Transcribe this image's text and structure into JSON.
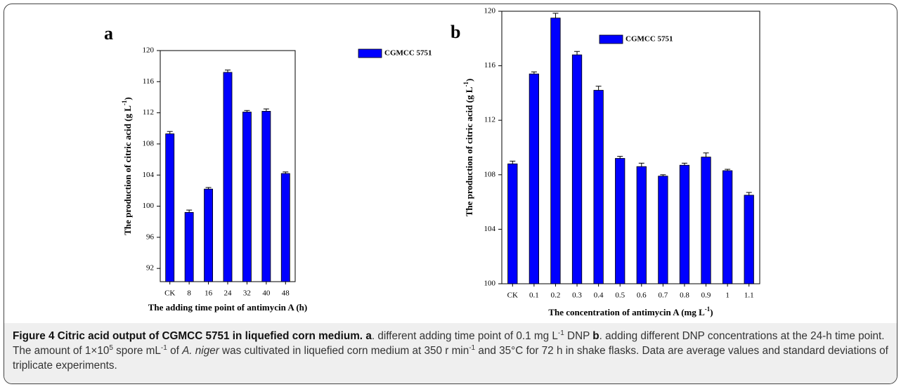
{
  "chart_data": [
    {
      "type": "bar",
      "panel": "a",
      "categories": [
        "CK",
        "8",
        "16",
        "24",
        "32",
        "40",
        "48"
      ],
      "series": [
        {
          "name": "CGMCC 5751",
          "color": "#0000ff",
          "values": [
            109.3,
            99.2,
            102.2,
            117.2,
            112.1,
            112.2,
            104.2
          ],
          "errors": [
            0.3,
            0.3,
            0.2,
            0.3,
            0.2,
            0.3,
            0.2
          ]
        }
      ],
      "ylim": [
        90.3,
        120
      ],
      "yticks": [
        92,
        96,
        100,
        104,
        108,
        112,
        116,
        120
      ],
      "x_label": "The adding time point of antimycin A (h)",
      "y_label": [
        "The production of citric acid (g L",
        "-1",
        ")"
      ],
      "legend": "upper right"
    },
    {
      "type": "bar",
      "panel": "b",
      "categories": [
        "CK",
        "0.1",
        "0.2",
        "0.3",
        "0.4",
        "0.5",
        "0.6",
        "0.7",
        "0.8",
        "0.9",
        "1",
        "1.1"
      ],
      "series": [
        {
          "name": "CGMCC 5751",
          "color": "#0000ff",
          "values": [
            108.8,
            115.4,
            119.5,
            116.8,
            114.2,
            109.2,
            108.6,
            107.9,
            108.7,
            109.3,
            108.3,
            106.5
          ],
          "errors": [
            0.2,
            0.15,
            0.35,
            0.25,
            0.3,
            0.15,
            0.25,
            0.1,
            0.15,
            0.3,
            0.1,
            0.2
          ]
        }
      ],
      "ylim": [
        100,
        120
      ],
      "yticks": [
        100,
        104,
        108,
        112,
        116,
        120
      ],
      "x_label": [
        "The concentration of antimycin A (mg L",
        "-1",
        ")"
      ],
      "y_label": [
        "The production of citric acid (g L",
        "-1",
        ")"
      ],
      "legend": "upper right"
    }
  ],
  "caption": {
    "parts": [
      "Figure 4 Citric acid output of CGMCC 5751 in liquefied corn medium.",
      "a",
      ". different adding time point of 0.1 mg L",
      "-1",
      " DNP ",
      "b",
      ". adding different DNP concentrations at the 24-h time point. The amount of 1×10",
      "5",
      " spore mL",
      "-1",
      " of ",
      "A. niger",
      " was cultivated in liquefied corn medium at 350 r min",
      "-1",
      " and 35°C for 72 h in shake flasks. Data are average values and standard deviations of triplicate experiments."
    ]
  }
}
